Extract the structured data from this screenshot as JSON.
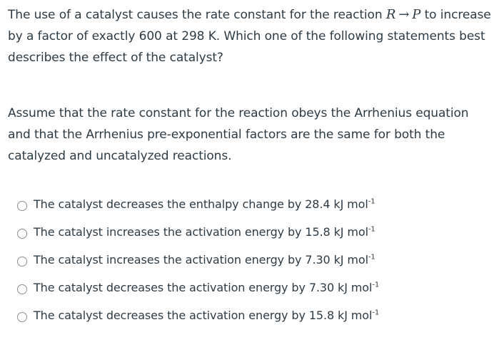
{
  "question": {
    "intro_before": "The use of a catalyst causes the rate constant for the reaction ",
    "reactant": "R",
    "arrow": "→",
    "product": "P",
    "intro_after": " to increase by a factor of exactly 600 at 298 K. Which one of the following statements best describes the effect of the catalyst?",
    "assumption": "Assume that the rate constant for the reaction obeys the Arrhenius equation and that the Arrhenius pre-exponential factors are the same for both the catalyzed and uncatalyzed reactions."
  },
  "answers": [
    {
      "text": "The catalyst decreases the enthalpy change by 28.4 kJ mol",
      "sup": "-1"
    },
    {
      "text": "The catalyst increases the activation energy by 15.8 kJ mol",
      "sup": "-1"
    },
    {
      "text": "The catalyst increases the activation energy by 7.30 kJ mol",
      "sup": "-1"
    },
    {
      "text": "The catalyst decreases the activation energy by 7.30 kJ mol",
      "sup": "-1"
    },
    {
      "text": "The catalyst decreases the activation energy by 15.8 kJ mol",
      "sup": "-1"
    }
  ]
}
